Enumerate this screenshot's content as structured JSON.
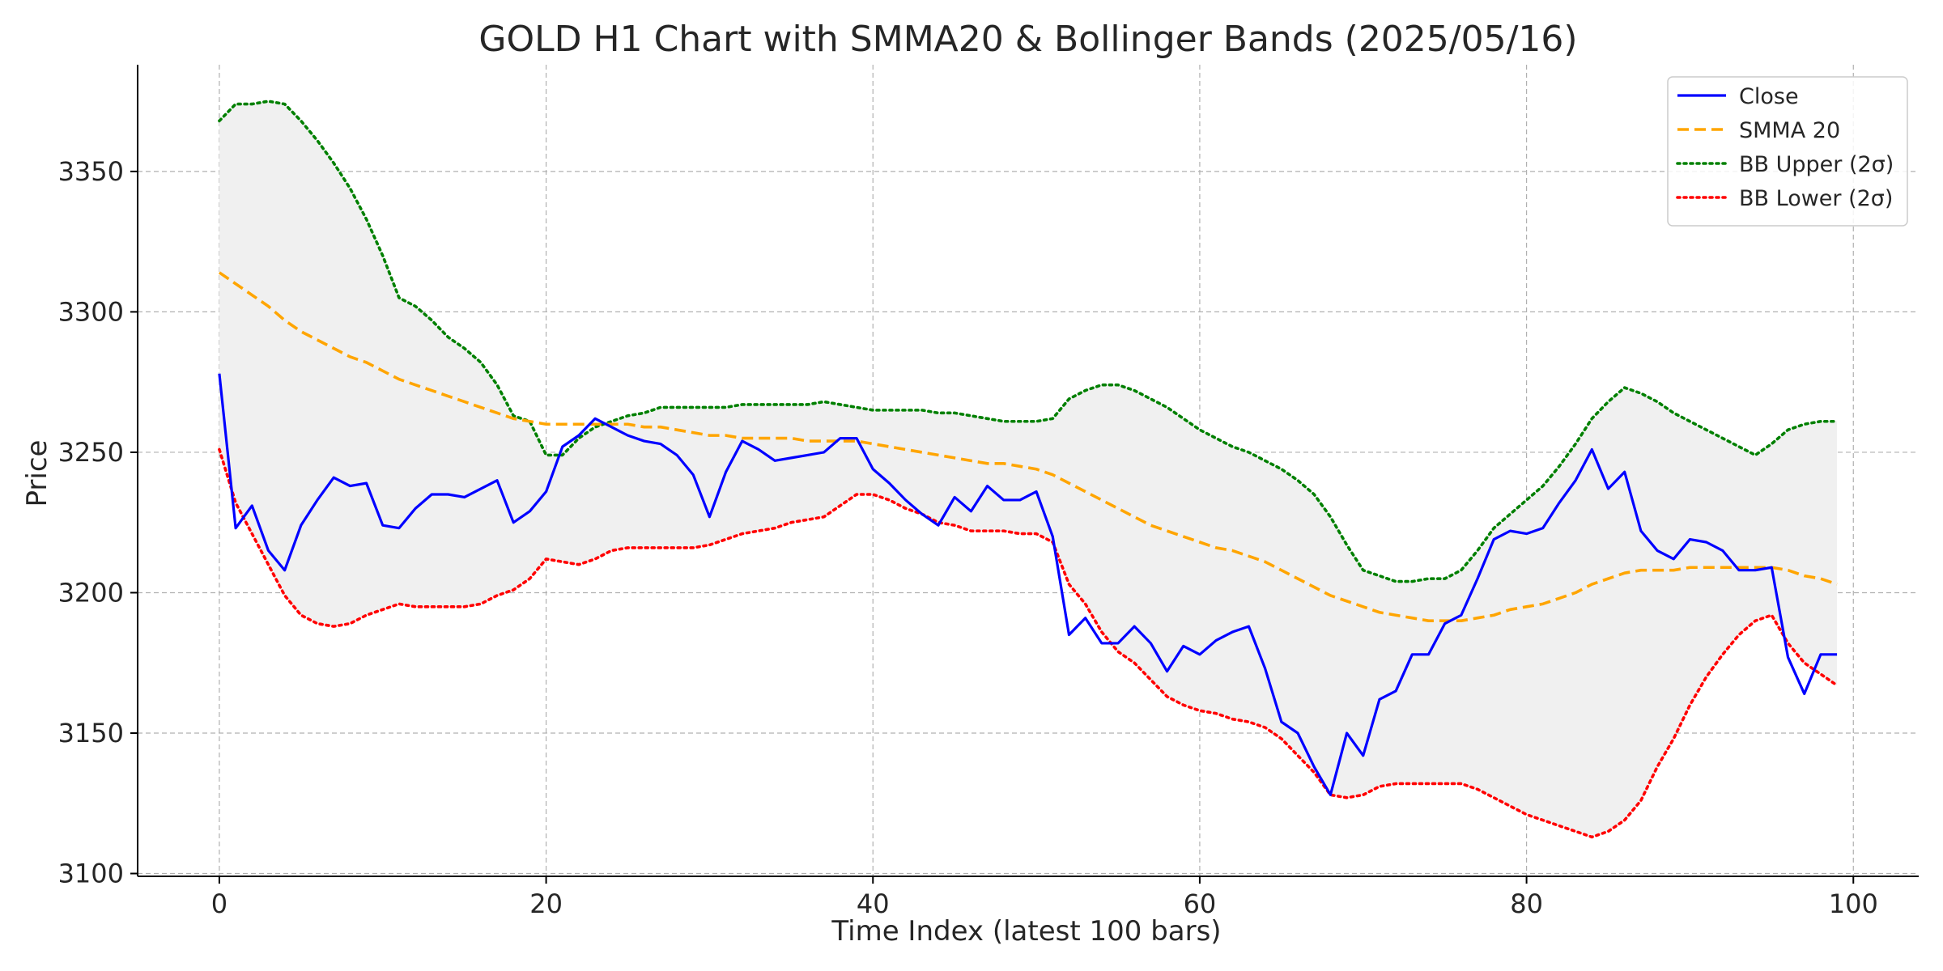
{
  "chart_data": {
    "type": "line",
    "title": "GOLD H1 Chart with SMMA20 & Bollinger Bands (2025/05/16)",
    "xlabel": "Time Index (latest 100 bars)",
    "ylabel": "Price",
    "xlim": [
      -5,
      104
    ],
    "ylim": [
      3099,
      3388
    ],
    "xticks": [
      0,
      20,
      40,
      60,
      80,
      100
    ],
    "yticks": [
      3100,
      3150,
      3200,
      3250,
      3300,
      3350
    ],
    "grid": true,
    "legend_position": "top-right",
    "band_fill_color": "#f0f0f0",
    "x": [
      0,
      1,
      2,
      3,
      4,
      5,
      6,
      7,
      8,
      9,
      10,
      11,
      12,
      13,
      14,
      15,
      16,
      17,
      18,
      19,
      20,
      21,
      22,
      23,
      24,
      25,
      26,
      27,
      28,
      29,
      30,
      31,
      32,
      33,
      34,
      35,
      36,
      37,
      38,
      39,
      40,
      41,
      42,
      43,
      44,
      45,
      46,
      47,
      48,
      49,
      50,
      51,
      52,
      53,
      54,
      55,
      56,
      57,
      58,
      59,
      60,
      61,
      62,
      63,
      64,
      65,
      66,
      67,
      68,
      69,
      70,
      71,
      72,
      73,
      74,
      75,
      76,
      77,
      78,
      79,
      80,
      81,
      82,
      83,
      84,
      85,
      86,
      87,
      88,
      89,
      90,
      91,
      92,
      93,
      94,
      95,
      96,
      97,
      98,
      99
    ],
    "series": [
      {
        "name": "Close",
        "color": "#0000ff",
        "style": "solid",
        "values": [
          3278,
          3223,
          3231,
          3215,
          3208,
          3224,
          3233,
          3241,
          3238,
          3239,
          3224,
          3223,
          3230,
          3235,
          3235,
          3234,
          3237,
          3240,
          3225,
          3229,
          3236,
          3252,
          3256,
          3262,
          3259,
          3256,
          3254,
          3253,
          3249,
          3242,
          3227,
          3243,
          3254,
          3251,
          3247,
          3248,
          3249,
          3250,
          3255,
          3255,
          3244,
          3239,
          3233,
          3228,
          3224,
          3234,
          3229,
          3238,
          3233,
          3233,
          3236,
          3220,
          3185,
          3191,
          3182,
          3182,
          3188,
          3182,
          3172,
          3181,
          3178,
          3183,
          3186,
          3188,
          3173,
          3154,
          3150,
          3138,
          3128,
          3150,
          3142,
          3162,
          3165,
          3178,
          3178,
          3189,
          3192,
          3205,
          3219,
          3222,
          3221,
          3223,
          3232,
          3240,
          3251,
          3237,
          3243,
          3222,
          3215,
          3212,
          3219,
          3218,
          3215,
          3208,
          3208,
          3209,
          3177,
          3164,
          3178,
          3178
        ]
      },
      {
        "name": "SMMA 20",
        "color": "#ffa500",
        "style": "dashed",
        "values": [
          3314,
          3310,
          3306,
          3302,
          3297,
          3293,
          3290,
          3287,
          3284,
          3282,
          3279,
          3276,
          3274,
          3272,
          3270,
          3268,
          3266,
          3264,
          3262,
          3261,
          3260,
          3260,
          3260,
          3260,
          3260,
          3260,
          3259,
          3259,
          3258,
          3257,
          3256,
          3256,
          3255,
          3255,
          3255,
          3255,
          3254,
          3254,
          3254,
          3254,
          3253,
          3252,
          3251,
          3250,
          3249,
          3248,
          3247,
          3246,
          3246,
          3245,
          3244,
          3242,
          3239,
          3236,
          3233,
          3230,
          3227,
          3224,
          3222,
          3220,
          3218,
          3216,
          3215,
          3213,
          3211,
          3208,
          3205,
          3202,
          3199,
          3197,
          3195,
          3193,
          3192,
          3191,
          3190,
          3190,
          3190,
          3191,
          3192,
          3194,
          3195,
          3196,
          3198,
          3200,
          3203,
          3205,
          3207,
          3208,
          3208,
          3208,
          3209,
          3209,
          3209,
          3209,
          3209,
          3209,
          3208,
          3206,
          3205,
          3203
        ]
      },
      {
        "name": "BB Upper (2σ)",
        "color": "#008000",
        "style": "dotted",
        "values": [
          3368,
          3374,
          3374,
          3375,
          3374,
          3368,
          3361,
          3353,
          3344,
          3333,
          3320,
          3305,
          3302,
          3297,
          3291,
          3287,
          3282,
          3274,
          3263,
          3261,
          3249,
          3249,
          3255,
          3259,
          3261,
          3263,
          3264,
          3266,
          3266,
          3266,
          3266,
          3266,
          3267,
          3267,
          3267,
          3267,
          3267,
          3268,
          3267,
          3266,
          3265,
          3265,
          3265,
          3265,
          3264,
          3264,
          3263,
          3262,
          3261,
          3261,
          3261,
          3262,
          3269,
          3272,
          3274,
          3274,
          3272,
          3269,
          3266,
          3262,
          3258,
          3255,
          3252,
          3250,
          3247,
          3244,
          3240,
          3235,
          3227,
          3217,
          3208,
          3206,
          3204,
          3204,
          3205,
          3205,
          3208,
          3215,
          3223,
          3228,
          3233,
          3238,
          3245,
          3253,
          3262,
          3268,
          3273,
          3271,
          3268,
          3264,
          3261,
          3258,
          3255,
          3252,
          3249,
          3253,
          3258,
          3260,
          3261,
          3261
        ]
      },
      {
        "name": "BB Lower (2σ)",
        "color": "#ff0000",
        "style": "dotted",
        "values": [
          3251,
          3232,
          3221,
          3210,
          3199,
          3192,
          3189,
          3188,
          3189,
          3192,
          3194,
          3196,
          3195,
          3195,
          3195,
          3195,
          3196,
          3199,
          3201,
          3205,
          3212,
          3211,
          3210,
          3212,
          3215,
          3216,
          3216,
          3216,
          3216,
          3216,
          3217,
          3219,
          3221,
          3222,
          3223,
          3225,
          3226,
          3227,
          3231,
          3235,
          3235,
          3233,
          3230,
          3228,
          3225,
          3224,
          3222,
          3222,
          3222,
          3221,
          3221,
          3218,
          3203,
          3196,
          3186,
          3179,
          3175,
          3169,
          3163,
          3160,
          3158,
          3157,
          3155,
          3154,
          3152,
          3148,
          3142,
          3136,
          3128,
          3127,
          3128,
          3131,
          3132,
          3132,
          3132,
          3132,
          3132,
          3130,
          3127,
          3124,
          3121,
          3119,
          3117,
          3115,
          3113,
          3115,
          3119,
          3126,
          3138,
          3148,
          3160,
          3170,
          3178,
          3185,
          3190,
          3192,
          3182,
          3175,
          3171,
          3167
        ]
      }
    ]
  }
}
